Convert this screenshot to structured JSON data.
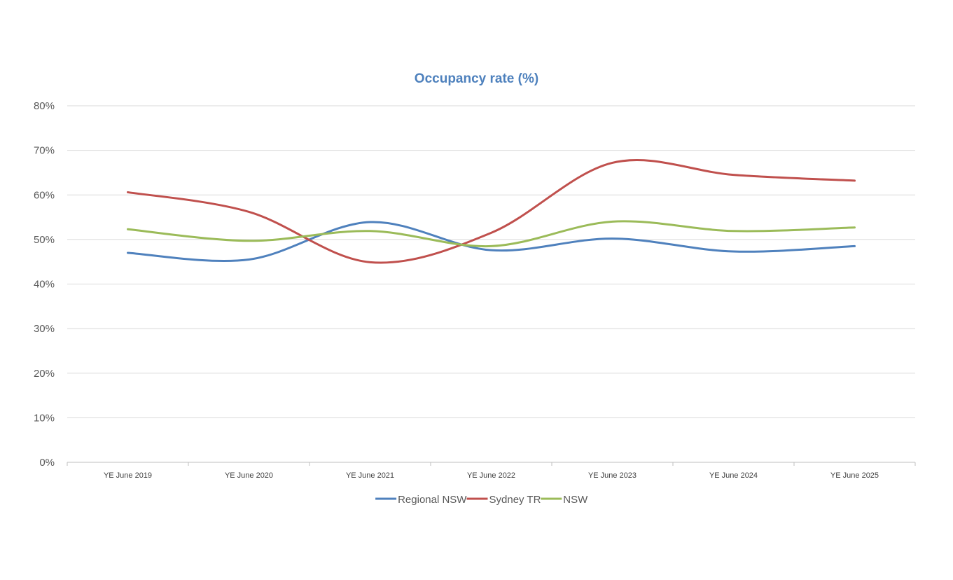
{
  "chart_data": {
    "type": "line",
    "title": "Occupancy rate (%)",
    "xlabel": "",
    "ylabel": "",
    "categories": [
      "YE June 2019",
      "YE June 2020",
      "YE June 2021",
      "YE June 2022",
      "YE June 2023",
      "YE June 2024",
      "YE June 2025"
    ],
    "ylim": [
      0,
      80
    ],
    "yticks": [
      0,
      10,
      20,
      30,
      40,
      50,
      60,
      70,
      80
    ],
    "ytick_labels": [
      "0%",
      "10%",
      "20%",
      "30%",
      "40%",
      "50%",
      "60%",
      "70%",
      "80%"
    ],
    "grid": true,
    "smooth": true,
    "legend_position": "bottom",
    "series": [
      {
        "name": "Regional NSW",
        "color": "#4f81bd",
        "values": [
          47.0,
          45.5,
          53.9,
          47.6,
          50.2,
          47.3,
          48.5
        ]
      },
      {
        "name": "Sydney TR",
        "color": "#c0504d",
        "values": [
          60.6,
          56.2,
          44.9,
          51.5,
          67.2,
          64.5,
          63.2
        ]
      },
      {
        "name": "NSW",
        "color": "#9bbb59",
        "values": [
          52.3,
          49.7,
          51.9,
          48.5,
          54.0,
          51.9,
          52.7
        ]
      }
    ]
  }
}
